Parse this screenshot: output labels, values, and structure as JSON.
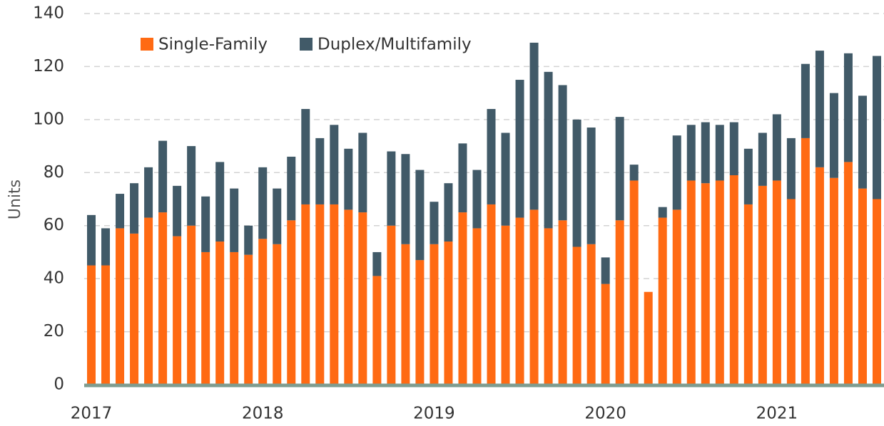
{
  "chart_data": {
    "type": "bar",
    "stacked": true,
    "y_label": "Units",
    "categories": [
      "2017",
      null,
      null,
      null,
      null,
      null,
      null,
      null,
      null,
      null,
      null,
      null,
      "2018",
      null,
      null,
      null,
      null,
      null,
      null,
      null,
      null,
      null,
      null,
      null,
      "2019",
      null,
      null,
      null,
      null,
      null,
      null,
      null,
      null,
      null,
      null,
      null,
      "2020",
      null,
      null,
      null,
      null,
      null,
      null,
      null,
      null,
      null,
      null,
      null,
      "2021",
      null,
      null,
      null,
      null,
      null,
      null,
      null
    ],
    "series": [
      {
        "name": "Single-Family",
        "color": "#ff6a13",
        "values": [
          45,
          45,
          59,
          57,
          63,
          65,
          56,
          60,
          50,
          54,
          50,
          49,
          55,
          53,
          62,
          68,
          68,
          68,
          66,
          65,
          41,
          60,
          53,
          47,
          53,
          54,
          65,
          59,
          68,
          60,
          63,
          66,
          59,
          62,
          52,
          53,
          38,
          62,
          77,
          35,
          63,
          66,
          77,
          76,
          77,
          79,
          68,
          75,
          77,
          70,
          93,
          82,
          78,
          84,
          74,
          70
        ]
      },
      {
        "name": "Duplex/Multifamily",
        "color": "#415a68",
        "values": [
          19,
          14,
          13,
          19,
          19,
          27,
          19,
          30,
          21,
          30,
          24,
          11,
          27,
          21,
          24,
          36,
          25,
          30,
          23,
          30,
          9,
          28,
          34,
          34,
          16,
          22,
          26,
          22,
          36,
          35,
          52,
          63,
          59,
          51,
          48,
          44,
          10,
          39,
          6,
          0,
          4,
          28,
          21,
          23,
          21,
          20,
          21,
          20,
          25,
          23,
          28,
          44,
          32,
          41,
          35,
          54
        ]
      }
    ],
    "ylim": [
      0,
      140
    ],
    "yticks": [
      0,
      20,
      40,
      60,
      80,
      100,
      120,
      140
    ],
    "grid": true,
    "legend": "top-left"
  }
}
